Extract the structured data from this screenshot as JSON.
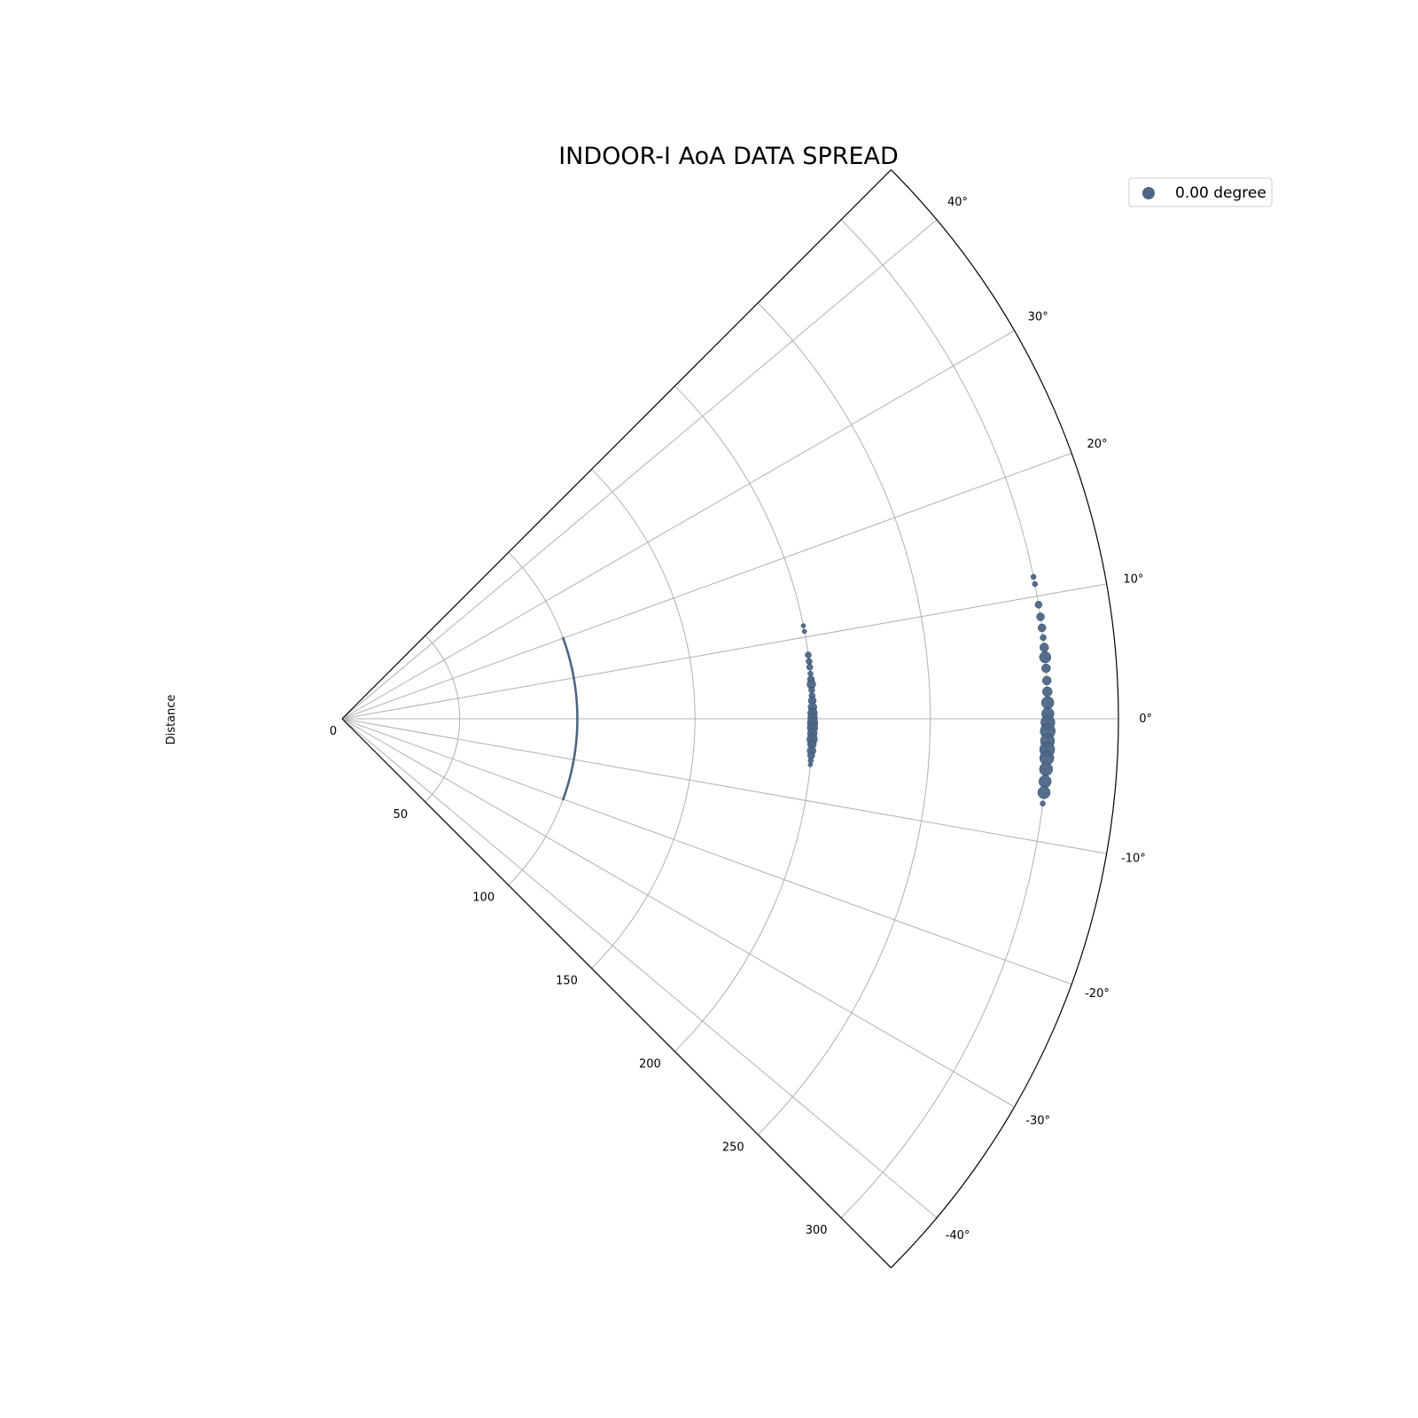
{
  "chart_data": {
    "type": "scatter",
    "projection": "polar",
    "title": "INDOOR-I AoA DATA SPREAD",
    "ylabel": "Distance",
    "theta_range_deg": [
      -45,
      45
    ],
    "r_range": [
      0,
      330
    ],
    "r_ticks": [
      0,
      50,
      100,
      150,
      200,
      250,
      300
    ],
    "r_tick_labels": [
      "0",
      "50",
      "100",
      "150",
      "200",
      "250",
      "300"
    ],
    "theta_ticks_deg": [
      -40,
      -30,
      -20,
      -10,
      0,
      10,
      20,
      30,
      40
    ],
    "theta_tick_labels": [
      "-40°",
      "-30°",
      "-20°",
      "-10°",
      "0°",
      "10°",
      "20°",
      "30°",
      "40°"
    ],
    "grid": true,
    "legend_position": "top-right",
    "colors": {
      "points": "#4d6685",
      "grid": "#b0b0b0",
      "frame": "#000000"
    },
    "series": [
      {
        "name": "0.00 degree",
        "groups": [
          {
            "r": 100,
            "theta_min_deg": -20,
            "theta_max_deg": 20,
            "theta_step_deg": 0.5,
            "size": 1.2
          },
          {
            "r": 200,
            "points": [
              {
                "theta": 11.4,
                "size": 2.5
              },
              {
                "theta": 10.7,
                "size": 2.5
              },
              {
                "theta": 7.8,
                "size": 3.5
              },
              {
                "theta": 7.0,
                "size": 3.5
              },
              {
                "theta": 6.3,
                "size": 3.5
              },
              {
                "theta": 5.5,
                "size": 3
              },
              {
                "theta": 4.8,
                "size": 4
              },
              {
                "theta": 4.2,
                "size": 5
              },
              {
                "theta": 3.5,
                "size": 3.5
              },
              {
                "theta": 2.8,
                "size": 3.5
              },
              {
                "theta": 2.2,
                "size": 4.5
              },
              {
                "theta": 1.4,
                "size": 5
              },
              {
                "theta": 0.7,
                "size": 5.5
              },
              {
                "theta": 0.1,
                "size": 5.5
              },
              {
                "theta": -0.5,
                "size": 6
              },
              {
                "theta": -1.1,
                "size": 6
              },
              {
                "theta": -1.8,
                "size": 5.5
              },
              {
                "theta": -2.5,
                "size": 6
              },
              {
                "theta": -3.1,
                "size": 5
              },
              {
                "theta": -3.9,
                "size": 5
              },
              {
                "theta": -4.5,
                "size": 4
              },
              {
                "theta": -5.1,
                "size": 3
              },
              {
                "theta": -5.6,
                "size": 2.5
              }
            ]
          },
          {
            "r": 300,
            "points": [
              {
                "theta": 11.6,
                "size": 3
              },
              {
                "theta": 11.0,
                "size": 3
              },
              {
                "theta": 9.3,
                "size": 4
              },
              {
                "theta": 8.3,
                "size": 4.5
              },
              {
                "theta": 7.4,
                "size": 4.5
              },
              {
                "theta": 6.6,
                "size": 3.5
              },
              {
                "theta": 5.8,
                "size": 5
              },
              {
                "theta": 5.0,
                "size": 6.5
              },
              {
                "theta": 4.1,
                "size": 5
              },
              {
                "theta": 3.1,
                "size": 5
              },
              {
                "theta": 2.2,
                "size": 5.5
              },
              {
                "theta": 1.3,
                "size": 7
              },
              {
                "theta": 0.4,
                "size": 7
              },
              {
                "theta": -0.3,
                "size": 8
              },
              {
                "theta": -1.0,
                "size": 8.5
              },
              {
                "theta": -1.8,
                "size": 8
              },
              {
                "theta": -2.5,
                "size": 8.5
              },
              {
                "theta": -3.2,
                "size": 8
              },
              {
                "theta": -4.1,
                "size": 7.5
              },
              {
                "theta": -5.1,
                "size": 7
              },
              {
                "theta": -6.0,
                "size": 7
              },
              {
                "theta": -6.9,
                "size": 3
              }
            ]
          }
        ]
      }
    ]
  }
}
